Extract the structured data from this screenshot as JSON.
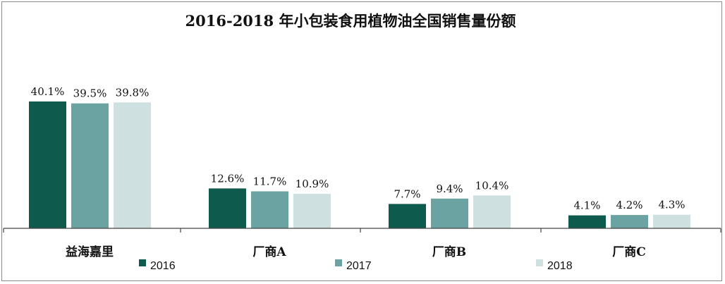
{
  "chart_data": {
    "type": "bar",
    "title": "2016-2018 年小包装食用植物油全国销售量份额",
    "xlabel": "",
    "ylabel": "",
    "ylim": [
      0,
      45
    ],
    "grid": false,
    "legend_position": "bottom",
    "value_suffix": "%",
    "categories": [
      "益海嘉里",
      "厂商A",
      "厂商B",
      "厂商C"
    ],
    "series": [
      {
        "name": "2016",
        "color": "#0e5a4c",
        "values": [
          40.1,
          12.6,
          7.7,
          4.1
        ]
      },
      {
        "name": "2017",
        "color": "#6aa3a2",
        "values": [
          39.5,
          11.7,
          9.4,
          4.2
        ]
      },
      {
        "name": "2018",
        "color": "#cfe0e1",
        "values": [
          39.8,
          10.9,
          10.4,
          4.3
        ]
      }
    ]
  }
}
